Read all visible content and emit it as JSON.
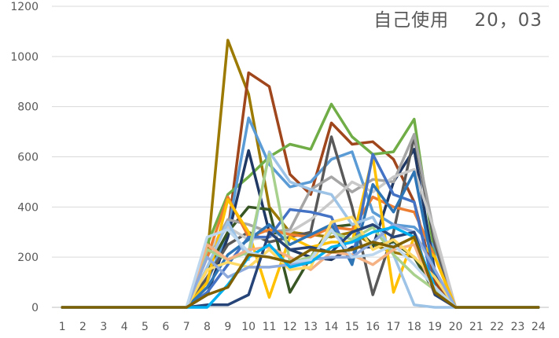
{
  "chart_data": {
    "type": "line",
    "title": "自己使用　 20，03",
    "xlabel": "",
    "ylabel": "",
    "categories": [
      "1",
      "2",
      "3",
      "4",
      "5",
      "6",
      "7",
      "8",
      "9",
      "10",
      "11",
      "12",
      "13",
      "14",
      "15",
      "16",
      "17",
      "18",
      "19",
      "20",
      "21",
      "22",
      "23",
      "24"
    ],
    "ylim": [
      0,
      1200
    ],
    "yticks": [
      0,
      200,
      400,
      600,
      800,
      1000,
      1200
    ],
    "grid": true,
    "legend": "none",
    "series": [
      {
        "color": "#9C7A00",
        "values": [
          0,
          0,
          0,
          0,
          0,
          0,
          0,
          200,
          1065,
          850,
          400,
          300,
          290,
          280,
          300,
          250,
          220,
          200,
          100,
          0,
          0,
          0,
          0,
          0
        ]
      },
      {
        "color": "#A0461C",
        "values": [
          0,
          0,
          0,
          0,
          0,
          0,
          0,
          150,
          300,
          935,
          880,
          530,
          450,
          735,
          650,
          660,
          590,
          420,
          100,
          0,
          0,
          0,
          0,
          0
        ]
      },
      {
        "color": "#70AD47",
        "values": [
          0,
          0,
          0,
          0,
          0,
          0,
          0,
          250,
          450,
          520,
          600,
          650,
          630,
          810,
          680,
          610,
          620,
          750,
          200,
          0,
          0,
          0,
          0,
          0
        ]
      },
      {
        "color": "#5B9BD5",
        "values": [
          0,
          0,
          0,
          0,
          0,
          0,
          0,
          100,
          300,
          755,
          570,
          480,
          500,
          590,
          620,
          380,
          330,
          320,
          240,
          0,
          0,
          0,
          0,
          0
        ]
      },
      {
        "color": "#1F3864",
        "values": [
          0,
          0,
          0,
          0,
          0,
          0,
          0,
          50,
          280,
          625,
          300,
          230,
          200,
          190,
          240,
          240,
          500,
          630,
          140,
          0,
          0,
          0,
          0,
          0
        ]
      },
      {
        "color": "#595959",
        "values": [
          0,
          0,
          0,
          0,
          0,
          0,
          0,
          120,
          250,
          300,
          260,
          280,
          300,
          680,
          400,
          50,
          300,
          680,
          250,
          0,
          0,
          0,
          0,
          0
        ]
      },
      {
        "color": "#375623",
        "values": [
          0,
          0,
          0,
          0,
          0,
          0,
          0,
          150,
          300,
          400,
          390,
          60,
          200,
          320,
          330,
          250,
          260,
          200,
          60,
          0,
          0,
          0,
          0,
          0
        ]
      },
      {
        "color": "#A5A5A5",
        "values": [
          0,
          0,
          0,
          0,
          0,
          0,
          0,
          200,
          350,
          330,
          300,
          310,
          470,
          520,
          460,
          510,
          500,
          690,
          280,
          0,
          0,
          0,
          0,
          0
        ]
      },
      {
        "color": "#C9C9C9",
        "values": [
          0,
          0,
          0,
          0,
          0,
          0,
          0,
          220,
          320,
          270,
          280,
          300,
          350,
          420,
          500,
          460,
          520,
          550,
          300,
          0,
          0,
          0,
          0,
          0
        ]
      },
      {
        "color": "#ED7D31",
        "values": [
          0,
          0,
          0,
          0,
          0,
          0,
          0,
          200,
          440,
          280,
          310,
          290,
          280,
          320,
          310,
          440,
          400,
          380,
          200,
          0,
          0,
          0,
          0,
          0
        ]
      },
      {
        "color": "#FFC000",
        "values": [
          0,
          0,
          0,
          0,
          0,
          0,
          0,
          100,
          430,
          300,
          40,
          280,
          240,
          260,
          260,
          600,
          60,
          280,
          200,
          0,
          0,
          0,
          0,
          0
        ]
      },
      {
        "color": "#4472C4",
        "values": [
          0,
          0,
          0,
          0,
          0,
          0,
          0,
          60,
          170,
          280,
          280,
          390,
          380,
          360,
          180,
          610,
          450,
          420,
          60,
          0,
          0,
          0,
          0,
          0
        ]
      },
      {
        "color": "#2E75B6",
        "values": [
          0,
          0,
          0,
          0,
          0,
          0,
          0,
          80,
          210,
          270,
          330,
          250,
          290,
          330,
          170,
          490,
          380,
          540,
          120,
          0,
          0,
          0,
          0,
          0
        ]
      },
      {
        "color": "#9DC3E6",
        "values": [
          0,
          0,
          0,
          0,
          0,
          0,
          0,
          160,
          340,
          190,
          620,
          500,
          470,
          450,
          330,
          360,
          210,
          10,
          0,
          0,
          0,
          0,
          0,
          0
        ]
      },
      {
        "color": "#A9D18E",
        "values": [
          0,
          0,
          0,
          0,
          0,
          0,
          0,
          230,
          190,
          220,
          610,
          180,
          200,
          300,
          270,
          320,
          210,
          130,
          70,
          0,
          0,
          0,
          0,
          0
        ]
      },
      {
        "color": "#F4B183",
        "values": [
          0,
          0,
          0,
          0,
          0,
          0,
          0,
          250,
          190,
          230,
          240,
          200,
          150,
          220,
          210,
          170,
          230,
          250,
          50,
          0,
          0,
          0,
          0,
          0
        ]
      },
      {
        "color": "#FFD966",
        "values": [
          0,
          0,
          0,
          0,
          0,
          0,
          0,
          150,
          180,
          160,
          230,
          150,
          160,
          340,
          360,
          230,
          270,
          200,
          120,
          0,
          0,
          0,
          0,
          0
        ]
      },
      {
        "color": "#8FAADC",
        "values": [
          0,
          0,
          0,
          0,
          0,
          0,
          0,
          200,
          120,
          160,
          160,
          170,
          190,
          200,
          200,
          260,
          330,
          300,
          150,
          0,
          0,
          0,
          0,
          0
        ]
      },
      {
        "color": "#264478",
        "values": [
          0,
          0,
          0,
          0,
          0,
          0,
          0,
          10,
          10,
          50,
          300,
          230,
          240,
          220,
          300,
          330,
          280,
          300,
          50,
          0,
          0,
          0,
          0,
          0
        ]
      },
      {
        "color": "#00B0F0",
        "values": [
          0,
          0,
          0,
          0,
          0,
          0,
          0,
          0,
          90,
          200,
          250,
          160,
          180,
          240,
          260,
          300,
          320,
          280,
          80,
          0,
          0,
          0,
          0,
          0
        ]
      },
      {
        "color": "#BDD7EE",
        "values": [
          0,
          0,
          0,
          0,
          0,
          0,
          0,
          280,
          310,
          220,
          200,
          180,
          190,
          310,
          200,
          210,
          250,
          170,
          80,
          0,
          0,
          0,
          0,
          0
        ]
      },
      {
        "color": "#7F6000",
        "values": [
          0,
          0,
          0,
          0,
          0,
          0,
          0,
          50,
          80,
          210,
          200,
          180,
          230,
          220,
          230,
          260,
          240,
          280,
          60,
          0,
          0,
          0,
          0,
          0
        ]
      }
    ]
  }
}
